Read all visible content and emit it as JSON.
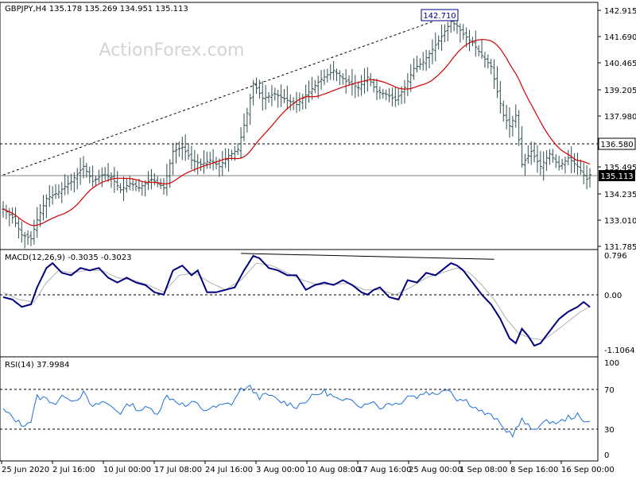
{
  "header": {
    "symbol_line": "GBPJPY,H4  135.178 135.269 134.951 135.113"
  },
  "watermark": "ActionForex.com",
  "colors": {
    "price": "#2f4f4f",
    "ma": "#d40000",
    "macd": "#000080",
    "signal": "#b0b0b0",
    "rsi": "#1e6fd9",
    "grid_dash": "#000000",
    "watermark": "#d3d3d3"
  },
  "chart_data": [
    {
      "type": "ohlc",
      "title": "GBPJPY,H4",
      "header_values": {
        "open": 135.178,
        "high": 135.269,
        "low": 134.951,
        "close": 135.113
      },
      "y_ticks": [
        "142.915",
        "141.690",
        "140.465",
        "139.205",
        "137.980",
        "135.495",
        "134.235",
        "133.010",
        "131.785"
      ],
      "ylim": [
        131.6,
        143.2
      ],
      "x_ticks": [
        "25 Jun 2020",
        "2 Jul 16:00",
        "10 Jul 00:00",
        "17 Jul 08:00",
        "24 Jul 16:00",
        "3 Aug 00:00",
        "10 Aug 08:00",
        "17 Aug 16:00",
        "25 Aug 00:00",
        "1 Sep 08:00",
        "8 Sep 16:00",
        "16 Sep 00:00"
      ],
      "price_labels": {
        "peak": "142.710",
        "level": "136.580",
        "current": "135.113"
      },
      "levels": [
        136.58,
        135.113
      ],
      "trendline": [
        [
          0,
          135.1
        ],
        [
          147,
          142.71
        ]
      ],
      "anchors": [
        [
          0,
          133.5
        ],
        [
          3,
          133.1
        ],
        [
          6,
          132.3
        ],
        [
          9,
          132.1
        ],
        [
          11,
          133.0
        ],
        [
          14,
          134.0
        ],
        [
          18,
          134.3
        ],
        [
          22,
          134.8
        ],
        [
          26,
          135.5
        ],
        [
          29,
          134.8
        ],
        [
          32,
          135.1
        ],
        [
          35,
          135.0
        ],
        [
          38,
          134.4
        ],
        [
          41,
          134.7
        ],
        [
          44,
          134.5
        ],
        [
          48,
          134.9
        ],
        [
          52,
          134.5
        ],
        [
          55,
          136.2
        ],
        [
          58,
          136.4
        ],
        [
          61,
          135.8
        ],
        [
          64,
          135.6
        ],
        [
          67,
          135.8
        ],
        [
          70,
          135.5
        ],
        [
          73,
          136.0
        ],
        [
          76,
          136.3
        ],
        [
          79,
          138.0
        ],
        [
          81,
          139.4
        ],
        [
          84,
          138.7
        ],
        [
          88,
          138.9
        ],
        [
          92,
          138.6
        ],
        [
          95,
          138.4
        ],
        [
          99,
          139.0
        ],
        [
          103,
          139.6
        ],
        [
          107,
          140.0
        ],
        [
          111,
          139.5
        ],
        [
          115,
          139.2
        ],
        [
          118,
          139.7
        ],
        [
          121,
          139.0
        ],
        [
          124,
          138.9
        ],
        [
          127,
          138.6
        ],
        [
          130,
          139.2
        ],
        [
          133,
          140.1
        ],
        [
          136,
          140.4
        ],
        [
          139,
          141.0
        ],
        [
          142,
          141.6
        ],
        [
          145,
          142.3
        ],
        [
          147,
          142.1
        ],
        [
          149,
          141.7
        ],
        [
          152,
          141.3
        ],
        [
          155,
          140.7
        ],
        [
          158,
          140.2
        ],
        [
          160,
          139.0
        ],
        [
          162,
          137.9
        ],
        [
          164,
          137.4
        ],
        [
          166,
          137.9
        ],
        [
          168,
          135.6
        ],
        [
          171,
          136.2
        ],
        [
          174,
          135.5
        ],
        [
          177,
          136.1
        ],
        [
          180,
          135.5
        ],
        [
          183,
          135.9
        ],
        [
          186,
          135.5
        ],
        [
          189,
          134.9
        ],
        [
          190,
          135.113
        ]
      ]
    },
    {
      "type": "line",
      "title": "MACD(12,26,9) -0.3035 -0.3023",
      "series": [
        {
          "name": "MACD",
          "values_ref": "anchors"
        },
        {
          "name": "Signal",
          "values_ref": "anchors_signal"
        }
      ],
      "header_values": {
        "macd": -0.3035,
        "signal": -0.3023
      },
      "y_ticks": [
        "0.796",
        "0.00",
        "-1.1064"
      ],
      "ylim": [
        -1.33,
        0.88
      ],
      "anchors": [
        [
          0,
          -0.1
        ],
        [
          3,
          -0.15
        ],
        [
          6,
          -0.3
        ],
        [
          9,
          -0.25
        ],
        [
          11,
          0.1
        ],
        [
          14,
          0.5
        ],
        [
          16,
          0.6
        ],
        [
          19,
          0.4
        ],
        [
          22,
          0.35
        ],
        [
          25,
          0.5
        ],
        [
          28,
          0.45
        ],
        [
          31,
          0.5
        ],
        [
          34,
          0.3
        ],
        [
          37,
          0.2
        ],
        [
          40,
          0.3
        ],
        [
          43,
          0.2
        ],
        [
          46,
          0.15
        ],
        [
          49,
          0.0
        ],
        [
          52,
          -0.05
        ],
        [
          55,
          0.45
        ],
        [
          58,
          0.55
        ],
        [
          61,
          0.35
        ],
        [
          63,
          0.45
        ],
        [
          66,
          0.0
        ],
        [
          69,
          0.0
        ],
        [
          72,
          0.05
        ],
        [
          75,
          0.1
        ],
        [
          78,
          0.45
        ],
        [
          81,
          0.75
        ],
        [
          83,
          0.7
        ],
        [
          86,
          0.5
        ],
        [
          89,
          0.45
        ],
        [
          92,
          0.35
        ],
        [
          95,
          0.35
        ],
        [
          98,
          0.05
        ],
        [
          101,
          0.15
        ],
        [
          104,
          0.2
        ],
        [
          107,
          0.15
        ],
        [
          110,
          0.25
        ],
        [
          113,
          0.15
        ],
        [
          116,
          0.0
        ],
        [
          118,
          -0.05
        ],
        [
          120,
          0.05
        ],
        [
          122,
          0.1
        ],
        [
          125,
          -0.1
        ],
        [
          128,
          -0.15
        ],
        [
          131,
          0.25
        ],
        [
          134,
          0.2
        ],
        [
          137,
          0.4
        ],
        [
          140,
          0.35
        ],
        [
          143,
          0.5
        ],
        [
          145,
          0.6
        ],
        [
          147,
          0.55
        ],
        [
          149,
          0.45
        ],
        [
          152,
          0.2
        ],
        [
          155,
          -0.05
        ],
        [
          158,
          -0.25
        ],
        [
          161,
          -0.55
        ],
        [
          164,
          -0.95
        ],
        [
          166,
          -1.05
        ],
        [
          168,
          -0.75
        ],
        [
          170,
          -0.9
        ],
        [
          172,
          -1.1
        ],
        [
          174,
          -1.05
        ],
        [
          177,
          -0.8
        ],
        [
          180,
          -0.55
        ],
        [
          183,
          -0.4
        ],
        [
          186,
          -0.3
        ],
        [
          188,
          -0.2
        ],
        [
          190,
          -0.3035
        ]
      ],
      "anchors_signal": [
        [
          0,
          0.0
        ],
        [
          5,
          -0.15
        ],
        [
          10,
          -0.2
        ],
        [
          14,
          0.2
        ],
        [
          18,
          0.45
        ],
        [
          22,
          0.4
        ],
        [
          27,
          0.45
        ],
        [
          32,
          0.45
        ],
        [
          37,
          0.3
        ],
        [
          42,
          0.25
        ],
        [
          47,
          0.15
        ],
        [
          52,
          0.0
        ],
        [
          57,
          0.35
        ],
        [
          62,
          0.4
        ],
        [
          67,
          0.2
        ],
        [
          72,
          0.05
        ],
        [
          77,
          0.25
        ],
        [
          82,
          0.6
        ],
        [
          87,
          0.55
        ],
        [
          92,
          0.4
        ],
        [
          97,
          0.25
        ],
        [
          102,
          0.15
        ],
        [
          107,
          0.17
        ],
        [
          112,
          0.18
        ],
        [
          117,
          0.05
        ],
        [
          122,
          0.05
        ],
        [
          127,
          -0.05
        ],
        [
          132,
          0.1
        ],
        [
          137,
          0.3
        ],
        [
          142,
          0.4
        ],
        [
          147,
          0.5
        ],
        [
          151,
          0.4
        ],
        [
          155,
          0.15
        ],
        [
          159,
          -0.15
        ],
        [
          163,
          -0.55
        ],
        [
          167,
          -0.85
        ],
        [
          171,
          -0.95
        ],
        [
          175,
          -0.98
        ],
        [
          179,
          -0.8
        ],
        [
          183,
          -0.6
        ],
        [
          187,
          -0.4
        ],
        [
          190,
          -0.3023
        ]
      ],
      "divergence_line": [
        [
          77,
          0.8
        ],
        [
          159,
          0.68
        ]
      ]
    },
    {
      "type": "line",
      "title": "RSI(14) 37.9984",
      "series": [
        {
          "name": "RSI(14)",
          "values_ref": "anchors"
        }
      ],
      "header_values": {
        "rsi": 37.9984
      },
      "y_ticks": [
        "100",
        "70",
        "30",
        "0"
      ],
      "ylim": [
        0,
        100
      ],
      "levels": [
        70,
        30
      ],
      "anchors": [
        [
          0,
          48
        ],
        [
          3,
          40
        ],
        [
          6,
          32
        ],
        [
          9,
          36
        ],
        [
          11,
          62
        ],
        [
          14,
          60
        ],
        [
          17,
          55
        ],
        [
          20,
          64
        ],
        [
          23,
          58
        ],
        [
          26,
          66
        ],
        [
          29,
          50
        ],
        [
          32,
          57
        ],
        [
          35,
          52
        ],
        [
          38,
          45
        ],
        [
          41,
          55
        ],
        [
          44,
          48
        ],
        [
          47,
          50
        ],
        [
          50,
          45
        ],
        [
          53,
          63
        ],
        [
          56,
          58
        ],
        [
          59,
          52
        ],
        [
          62,
          56
        ],
        [
          65,
          48
        ],
        [
          68,
          50
        ],
        [
          71,
          53
        ],
        [
          74,
          55
        ],
        [
          77,
          70
        ],
        [
          80,
          72
        ],
        [
          83,
          62
        ],
        [
          86,
          64
        ],
        [
          89,
          58
        ],
        [
          92,
          55
        ],
        [
          95,
          52
        ],
        [
          98,
          58
        ],
        [
          101,
          64
        ],
        [
          104,
          68
        ],
        [
          107,
          62
        ],
        [
          110,
          56
        ],
        [
          113,
          60
        ],
        [
          116,
          52
        ],
        [
          119,
          58
        ],
        [
          122,
          50
        ],
        [
          125,
          56
        ],
        [
          128,
          54
        ],
        [
          131,
          64
        ],
        [
          134,
          62
        ],
        [
          137,
          68
        ],
        [
          140,
          64
        ],
        [
          143,
          72
        ],
        [
          145,
          68
        ],
        [
          147,
          60
        ],
        [
          150,
          58
        ],
        [
          153,
          50
        ],
        [
          156,
          44
        ],
        [
          159,
          40
        ],
        [
          162,
          28
        ],
        [
          165,
          22
        ],
        [
          168,
          37
        ],
        [
          171,
          27
        ],
        [
          174,
          32
        ],
        [
          177,
          36
        ],
        [
          180,
          34
        ],
        [
          183,
          40
        ],
        [
          186,
          42
        ],
        [
          188,
          34
        ],
        [
          190,
          37.9984
        ]
      ]
    }
  ]
}
